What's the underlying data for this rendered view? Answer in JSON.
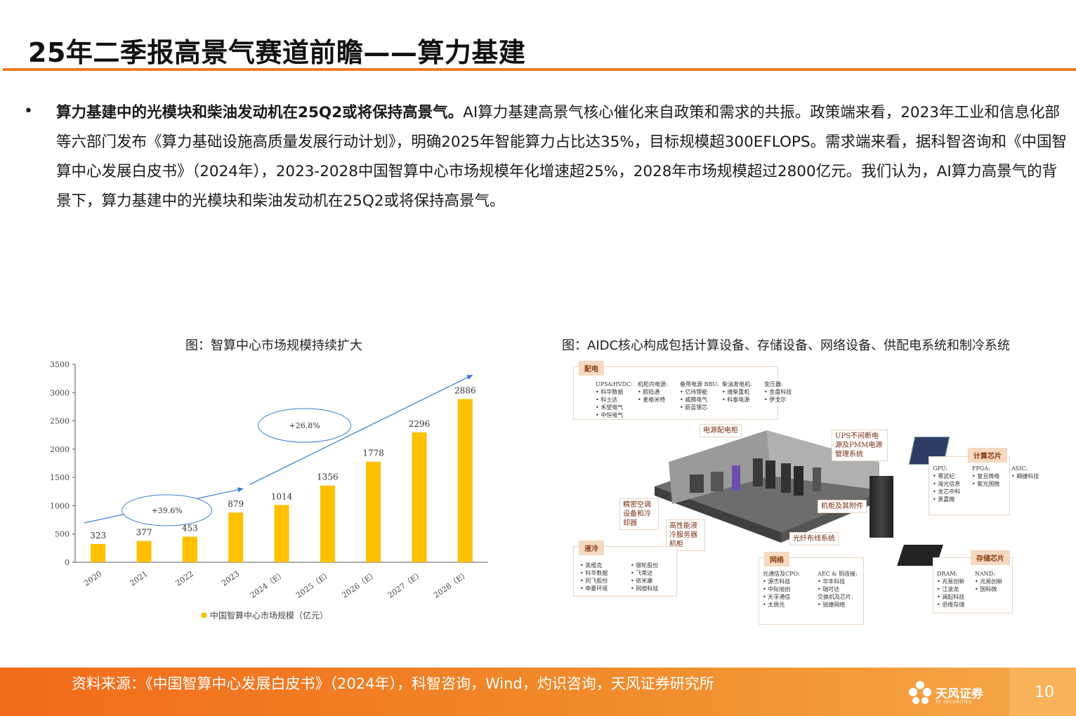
{
  "header": {
    "title": "25年二季报高景气赛道前瞻——算力基建"
  },
  "bullet": {
    "lead": "算力基建中的光模块和柴油发动机在25Q2或将保持高景气。",
    "body": "AI算力基建高景气核心催化来自政策和需求的共振。政策端来看，2023年工业和信息化部等六部门发布《算力基础设施高质量发展行动计划》，明确2025年智能算力占比达35%，目标规模超300EFLOPS。需求端来看，据科智咨询和《中国智算中心发展白皮书》（2024年），2023-2028中国智算中心市场规模年化增速超25%，2028年市场规模超过2800亿元。我们认为，AI算力高景气的背景下，算力基建中的光模块和柴油发动机在25Q2或将保持高景气。"
  },
  "captions": {
    "left": "图：智算中心市场规模持续扩大",
    "right": "图：AIDC核心构成包括计算设备、存储设备、网络设备、供配电系统和制冷系统"
  },
  "chart_data": {
    "type": "bar",
    "categories": [
      "2020",
      "2021",
      "2022",
      "2023",
      "2024（E）",
      "2025（E）",
      "2026（E）",
      "2027（E）",
      "2028（E）"
    ],
    "values": [
      323,
      377,
      453,
      879,
      1014,
      1356,
      1778,
      2296,
      2886
    ],
    "series": [
      {
        "name": "中国智算中心市场规模（亿元）",
        "values": [
          323,
          377,
          453,
          879,
          1014,
          1356,
          1778,
          2296,
          2886
        ]
      }
    ],
    "ylim": [
      0,
      3500
    ],
    "yticks": [
      0,
      500,
      1000,
      1500,
      2000,
      2500,
      3000,
      3500
    ],
    "annotations": [
      "+39.6%",
      "+26.8%"
    ],
    "legend_position": "bottom",
    "bar_color": "#ffc000",
    "grid": false
  },
  "diagram": {
    "power": {
      "tag": "配电",
      "cols": [
        {
          "head": "UPS&HVDC:",
          "items": [
            "• 科华数据",
            "• 科士达",
            "• 禾望电气",
            "• 中恒电气"
          ]
        },
        {
          "head": "机柜内电源:",
          "items": [
            "• 欧陆通",
            "• 麦格米特"
          ]
        },
        {
          "head": "备用电源 BBU:",
          "items": [
            "• 亿纬锂能",
            "• 威腾电气",
            "• 蔚蓝锂芯"
          ]
        },
        {
          "head": "柴油发电机:",
          "items": [
            "• 潍柴重机",
            "• 科泰电源"
          ]
        },
        {
          "head": "变压器:",
          "items": [
            "• 金盘科技",
            "• 伊戈尔"
          ]
        }
      ]
    },
    "labels": {
      "power_cabinet": "电源配电柜",
      "ups": "UPS不间断电源及PMM电源管理系统",
      "ac": "精密空调设备和冷却器",
      "cabinet": "机柜及其附件",
      "liquid_server": "高性能液冷服务器机柜",
      "fiber": "光纤布线系统"
    },
    "compute": {
      "tag": "计算芯片",
      "cols": [
        {
          "head": "GPU:",
          "items": [
            "• 寒武纪",
            "• 海光信息",
            "• 龙芯中科",
            "• 景嘉微"
          ]
        },
        {
          "head": "FPGA:",
          "items": [
            "• 复旦微电",
            "• 紫光国微"
          ]
        },
        {
          "head": "ASIC:",
          "items": [
            "• 翱捷科技"
          ]
        }
      ]
    },
    "cooling": {
      "tag": "液冷",
      "cols": [
        {
          "items": [
            "• 英维克",
            "• 科华数据",
            "• 同飞股份",
            "• 申菱环境"
          ]
        },
        {
          "items": [
            "• 银轮股份",
            "• 飞荣达",
            "• 依米康",
            "• 网宿科技"
          ]
        }
      ]
    },
    "network": {
      "tag": "网络",
      "cols": [
        {
          "head": "光通信及CPO:",
          "items": [
            "• 源杰科技",
            "• 中际旭创",
            "• 天孚通信",
            "• 太辰光"
          ]
        },
        {
          "head": "AEC & 铜连接:",
          "items": [
            "• 华丰科技",
            "• 瑞可达"
          ],
          "head2": "交换机及芯片:",
          "items2": [
            "• 锐捷网络"
          ]
        }
      ]
    },
    "storage": {
      "tag": "存储芯片",
      "cols": [
        {
          "head": "DRAM:",
          "items": [
            "• 兆易创新",
            "• 江波龙",
            "• 澜起科技",
            "• 佰维存储"
          ]
        },
        {
          "head": "NAND:",
          "items": [
            "• 兆易创新",
            "• 国科微"
          ]
        }
      ]
    }
  },
  "footer": {
    "source": "资料来源：《中国智算中心发展白皮书》（2024年），科智咨询，Wind，灼识咨询，天风证券研究所",
    "logo_name": "天风证券",
    "logo_sub": "TF SECURITIES",
    "page": "10"
  },
  "colors": {
    "accent": "#f07a1e",
    "bar": "#ffc000",
    "arrow": "#3a7bd5"
  }
}
